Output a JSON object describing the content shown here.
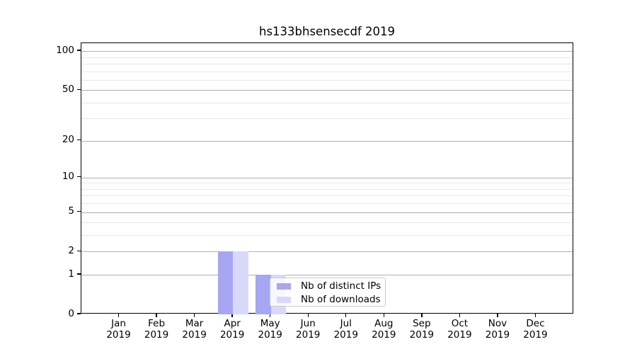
{
  "chart_data": {
    "type": "bar",
    "title": "hs133bhsensecdf 2019",
    "months": [
      "Jan",
      "Feb",
      "Mar",
      "Apr",
      "May",
      "Jun",
      "Jul",
      "Aug",
      "Sep",
      "Oct",
      "Nov",
      "Dec"
    ],
    "year": "2019",
    "series": [
      {
        "name": "Nb of distinct IPs",
        "color": "#a6a6f2",
        "values": [
          0,
          0,
          0,
          2,
          1,
          0,
          0,
          0,
          0,
          0,
          0,
          0
        ]
      },
      {
        "name": "Nb of downloads",
        "color": "#d8d8fa",
        "values": [
          0,
          0,
          0,
          2,
          1,
          0,
          0,
          0,
          0,
          0,
          0,
          0
        ]
      }
    ],
    "y_scale": "log1p",
    "y_ticks": [
      0,
      1,
      2,
      5,
      10,
      20,
      50,
      100
    ],
    "ylim": [
      0,
      115
    ],
    "grid": {
      "major_values": [
        1,
        2,
        5,
        10,
        20,
        50,
        100
      ],
      "minor_values": [
        3,
        4,
        6,
        7,
        8,
        9,
        30,
        40,
        60,
        70,
        80,
        90
      ],
      "major_color": "#b0b0b0",
      "minor_color": "#e7e7e7"
    },
    "legend": {
      "position": "lower center",
      "frame_color": "#cccccc"
    },
    "colors": {
      "spine": "#000000",
      "text": "#000000",
      "background": "#ffffff"
    }
  }
}
